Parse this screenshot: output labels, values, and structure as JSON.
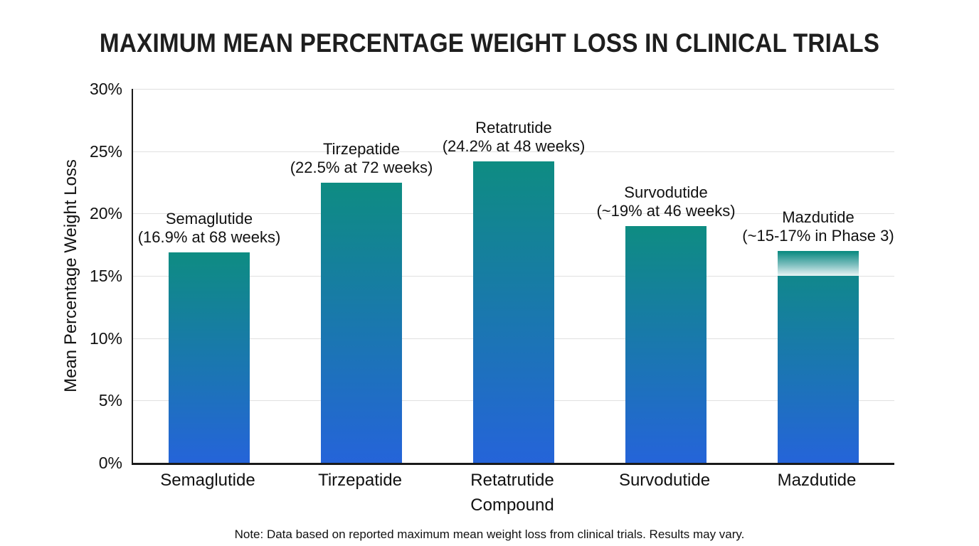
{
  "page": {
    "background_color": "#ffffff",
    "text_color": "#111111"
  },
  "chart_data": {
    "type": "bar",
    "title": "MAXIMUM MEAN PERCENTAGE WEIGHT LOSS IN CLINICAL TRIALS",
    "xlabel": "Compound",
    "ylabel": "Mean Percentage Weight Loss",
    "ylim": [
      0,
      30
    ],
    "grid": true,
    "legend": "none",
    "bar_color_top": "#0E8C82",
    "bar_color_bottom": "#2564D9",
    "axis_color": "#1a1a1a",
    "gridline_color": "#e0e0e0",
    "categories": [
      "Semaglutide",
      "Tirzepatide",
      "Retatrutide",
      "Survodutide",
      "Mazdutide"
    ],
    "values": [
      16.9,
      22.5,
      24.2,
      19,
      17
    ],
    "yticks": [
      {
        "value": 0,
        "label": "0%"
      },
      {
        "value": 5,
        "label": "5%"
      },
      {
        "value": 10,
        "label": "10%"
      },
      {
        "value": 15,
        "label": "15%"
      },
      {
        "value": 20,
        "label": "20%"
      },
      {
        "value": 25,
        "label": "25%"
      },
      {
        "value": 30,
        "label": "30%"
      }
    ],
    "bars": [
      {
        "category": "Semaglutide",
        "value": 16.9,
        "annotation_line1": "Semaglutide",
        "annotation_line2": "(16.9% at 68 weeks)"
      },
      {
        "category": "Tirzepatide",
        "value": 22.5,
        "annotation_line1": "Tirzepatide",
        "annotation_line2": "(22.5% at 72 weeks)"
      },
      {
        "category": "Retatrutide",
        "value": 24.2,
        "annotation_line1": "Retatrutide",
        "annotation_line2": "(24.2% at 48 weeks)"
      },
      {
        "category": "Survodutide",
        "value": 19,
        "annotation_line1": "Survodutide",
        "annotation_line2": "(~19% at 46 weeks)"
      },
      {
        "category": "Mazdutide",
        "value": 17,
        "annotation_line1": "Mazdutide",
        "annotation_line2": "(~15-17% in Phase 3)",
        "fade_band_from": 15
      }
    ],
    "note": "Note: Data based on reported maximum mean weight loss from clinical trials. Results may vary."
  }
}
